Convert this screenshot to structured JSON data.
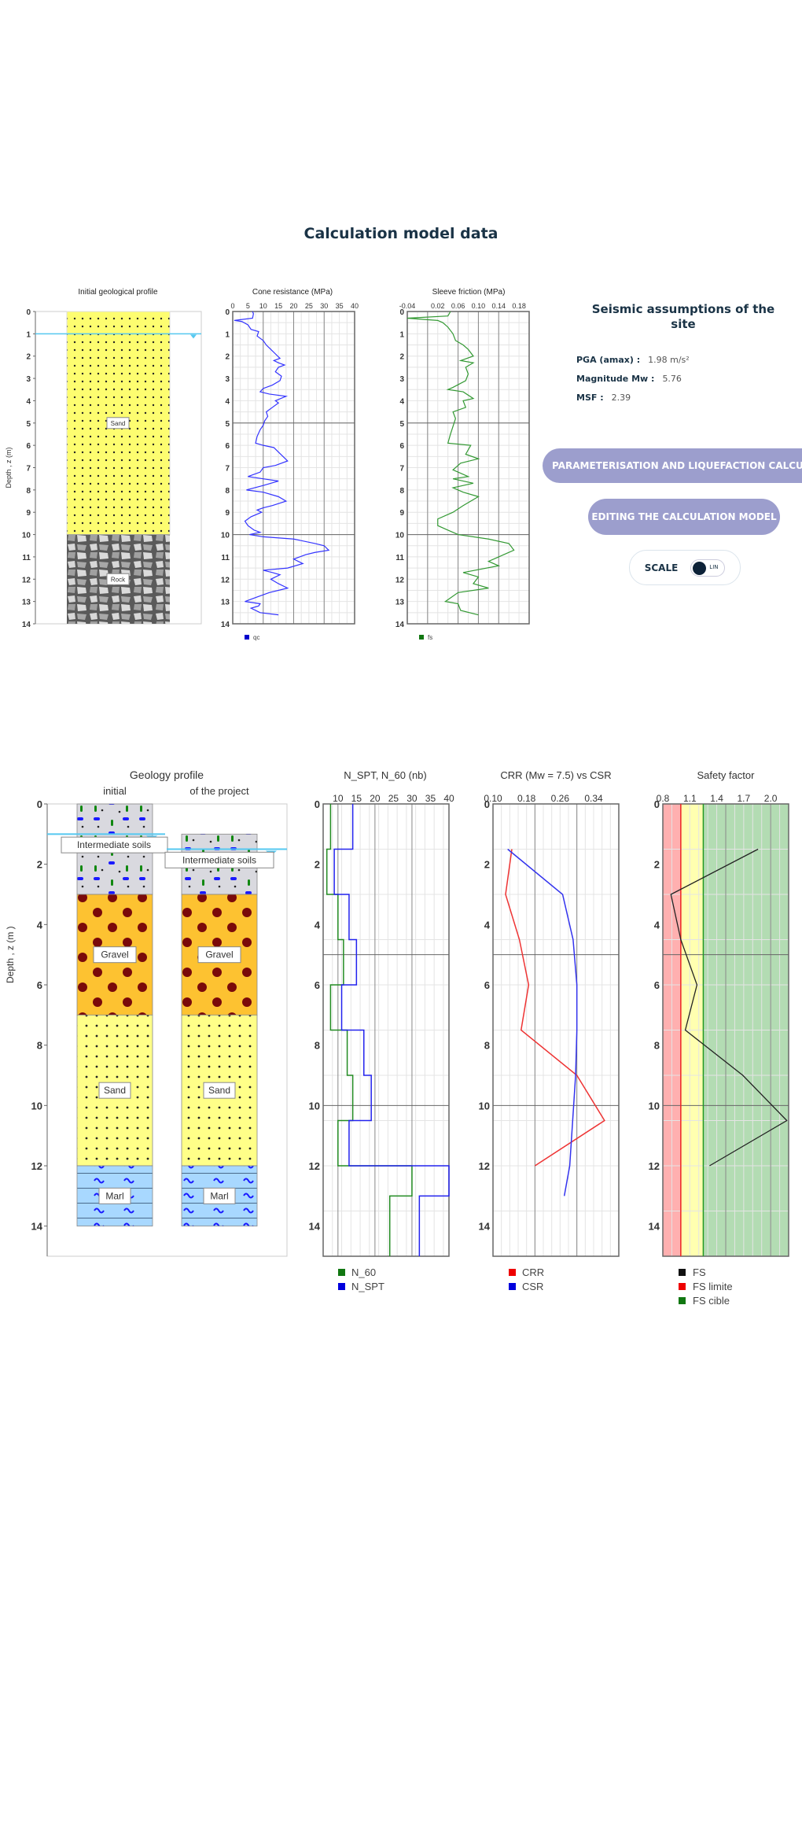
{
  "page": {
    "title": "Calculation model data"
  },
  "seismic": {
    "title": "Seismic assumptions of the site",
    "pga_label": "PGA (amax) :",
    "pga_value": "1.98 m/s²",
    "mw_label": "Magnitude Mw :",
    "mw_value": "5.76",
    "msf_label": "MSF :",
    "msf_value": "2.39"
  },
  "buttons": {
    "param": "PARAMETERISATION AND LIQUEFACTION CALCULATION",
    "edit": "EDITING THE CALCULATION MODEL",
    "scale_label": "SCALE",
    "scale_state": "LIN"
  },
  "colors": {
    "accent": "#9c9ecd",
    "navy": "#1a3346",
    "water": "#55c8f0"
  },
  "chart_data": [
    {
      "id": "initial_geology",
      "type": "table",
      "title": "Initial geological profile",
      "ylabel": "Depth , z (m)",
      "ylim": [
        0,
        14
      ],
      "water_table_depth": 1,
      "layers": [
        {
          "name": "Sand",
          "top": 0,
          "bottom": 10,
          "color": "#fdfd70"
        },
        {
          "name": "Rock",
          "top": 10,
          "bottom": 14,
          "color": "#8a8a8a"
        }
      ]
    },
    {
      "id": "cone_resistance",
      "type": "line",
      "title": "Cone resistance (MPa)",
      "xlim": [
        0,
        40
      ],
      "ylim": [
        0,
        14
      ],
      "xticks": [
        0,
        5,
        10,
        15,
        20,
        25,
        30,
        35,
        40
      ],
      "yticks": [
        0,
        1,
        2,
        3,
        4,
        5,
        6,
        7,
        8,
        9,
        10,
        11,
        12,
        13,
        14
      ],
      "legend": [
        "qc"
      ],
      "color": "#3333ff",
      "points": [
        [
          6.5,
          0
        ],
        [
          6.8,
          0.1
        ],
        [
          6.5,
          0.3
        ],
        [
          0.5,
          0.4
        ],
        [
          3,
          0.45
        ],
        [
          5,
          0.6
        ],
        [
          6,
          0.8
        ],
        [
          8.5,
          0.9
        ],
        [
          8,
          1.1
        ],
        [
          10,
          1.3
        ],
        [
          11,
          1.5
        ],
        [
          12.5,
          1.7
        ],
        [
          14,
          1.9
        ],
        [
          15.5,
          2.1
        ],
        [
          13.5,
          2.2
        ],
        [
          15,
          2.3
        ],
        [
          17,
          2.4
        ],
        [
          15,
          2.5
        ],
        [
          14,
          2.7
        ],
        [
          16,
          2.9
        ],
        [
          15.5,
          3.1
        ],
        [
          13,
          3.3
        ],
        [
          10,
          3.45
        ],
        [
          9,
          3.6
        ],
        [
          12,
          3.7
        ],
        [
          17.5,
          3.8
        ],
        [
          14,
          4.0
        ],
        [
          15,
          4.1
        ],
        [
          13,
          4.3
        ],
        [
          11,
          4.5
        ],
        [
          11.5,
          4.7
        ],
        [
          10.5,
          4.9
        ],
        [
          10,
          5.1
        ],
        [
          9,
          5.3
        ],
        [
          8,
          5.6
        ],
        [
          7.5,
          5.9
        ],
        [
          10,
          6.0
        ],
        [
          13.5,
          6.1
        ],
        [
          15,
          6.3
        ],
        [
          16.5,
          6.5
        ],
        [
          18,
          6.7
        ],
        [
          14,
          6.9
        ],
        [
          10,
          7.0
        ],
        [
          9,
          7.2
        ],
        [
          5,
          7.4
        ],
        [
          10,
          7.5
        ],
        [
          15,
          7.6
        ],
        [
          10,
          7.8
        ],
        [
          4.5,
          8.0
        ],
        [
          10,
          8.1
        ],
        [
          15,
          8.3
        ],
        [
          17.5,
          8.5
        ],
        [
          13,
          8.7
        ],
        [
          10,
          8.8
        ],
        [
          8,
          8.9
        ],
        [
          9.5,
          9.0
        ],
        [
          6,
          9.2
        ],
        [
          4,
          9.4
        ],
        [
          5,
          9.6
        ],
        [
          7,
          9.8
        ],
        [
          9,
          9.9
        ],
        [
          5.5,
          10.0
        ],
        [
          10,
          10.1
        ],
        [
          20,
          10.2
        ],
        [
          27,
          10.4
        ],
        [
          30,
          10.5
        ],
        [
          31.5,
          10.7
        ],
        [
          27,
          10.8
        ],
        [
          24,
          10.9
        ],
        [
          20,
          11.1
        ],
        [
          23,
          11.3
        ],
        [
          18,
          11.5
        ],
        [
          10,
          11.6
        ],
        [
          13,
          11.7
        ],
        [
          15.5,
          11.8
        ],
        [
          12.5,
          12.0
        ],
        [
          15,
          12.2
        ],
        [
          18,
          12.4
        ],
        [
          12,
          12.6
        ],
        [
          8,
          12.8
        ],
        [
          4,
          13.0
        ],
        [
          9,
          13.1
        ],
        [
          8.5,
          13.2
        ],
        [
          6,
          13.3
        ],
        [
          9,
          13.5
        ],
        [
          15,
          13.6
        ]
      ]
    },
    {
      "id": "sleeve_friction",
      "type": "line",
      "title": "Sleeve friction (MPa)",
      "xlim": [
        -0.04,
        0.2
      ],
      "ylim": [
        0,
        14
      ],
      "xticks": [
        -0.04,
        0.02,
        0.06,
        0.1,
        0.14,
        0.18
      ],
      "legend": [
        "fs"
      ],
      "color": "#339933",
      "points": [
        [
          0.045,
          0
        ],
        [
          0.04,
          0.2
        ],
        [
          -0.04,
          0.3
        ],
        [
          0.02,
          0.4
        ],
        [
          0.03,
          0.5
        ],
        [
          0.04,
          0.7
        ],
        [
          0.05,
          1.0
        ],
        [
          0.055,
          1.3
        ],
        [
          0.07,
          1.5
        ],
        [
          0.08,
          1.7
        ],
        [
          0.09,
          2.0
        ],
        [
          0.065,
          2.2
        ],
        [
          0.09,
          2.3
        ],
        [
          0.075,
          2.5
        ],
        [
          0.08,
          2.8
        ],
        [
          0.075,
          3.1
        ],
        [
          0.05,
          3.4
        ],
        [
          0.04,
          3.5
        ],
        [
          0.07,
          3.6
        ],
        [
          0.09,
          3.9
        ],
        [
          0.07,
          4.0
        ],
        [
          0.075,
          4.3
        ],
        [
          0.05,
          4.5
        ],
        [
          0.055,
          4.8
        ],
        [
          0.045,
          5.5
        ],
        [
          0.04,
          5.9
        ],
        [
          0.085,
          6.0
        ],
        [
          0.075,
          6.4
        ],
        [
          0.1,
          6.6
        ],
        [
          0.065,
          6.8
        ],
        [
          0.05,
          7.1
        ],
        [
          0.08,
          7.4
        ],
        [
          0.05,
          7.5
        ],
        [
          0.09,
          7.7
        ],
        [
          0.05,
          7.9
        ],
        [
          0.07,
          8.1
        ],
        [
          0.1,
          8.3
        ],
        [
          0.07,
          8.7
        ],
        [
          0.05,
          9.0
        ],
        [
          0.02,
          9.3
        ],
        [
          0.02,
          9.6
        ],
        [
          0.04,
          9.8
        ],
        [
          0.06,
          10.0
        ],
        [
          0.12,
          10.2
        ],
        [
          0.16,
          10.4
        ],
        [
          0.17,
          10.7
        ],
        [
          0.15,
          10.9
        ],
        [
          0.12,
          11.2
        ],
        [
          0.14,
          11.4
        ],
        [
          0.07,
          11.7
        ],
        [
          0.1,
          11.9
        ],
        [
          0.09,
          12.2
        ],
        [
          0.12,
          12.4
        ],
        [
          0.06,
          12.6
        ],
        [
          0.035,
          13.0
        ],
        [
          0.06,
          13.1
        ],
        [
          0.065,
          13.4
        ],
        [
          0.1,
          13.6
        ]
      ]
    },
    {
      "id": "geology_profile",
      "type": "table",
      "title": "Geology profile",
      "columns": [
        "initial",
        "of the project"
      ],
      "ylabel": "Depth , z (m )",
      "ylim": [
        0,
        15
      ],
      "yticks": [
        0,
        2,
        4,
        6,
        8,
        10,
        12,
        14
      ],
      "water_table_depth": {
        "initial": 1.0,
        "project": 1.5
      },
      "layers_initial": [
        {
          "name": "Intermediate soils",
          "top": 0,
          "bottom": 3
        },
        {
          "name": "Gravel",
          "top": 3,
          "bottom": 7
        },
        {
          "name": "Sand",
          "top": 7,
          "bottom": 12
        },
        {
          "name": "Marl",
          "top": 12,
          "bottom": 14
        }
      ],
      "layers_project": [
        {
          "name": "Intermediate soils",
          "top": 1,
          "bottom": 3
        },
        {
          "name": "Gravel",
          "top": 3,
          "bottom": 7
        },
        {
          "name": "Sand",
          "top": 7,
          "bottom": 12
        },
        {
          "name": "Marl",
          "top": 12,
          "bottom": 14
        }
      ]
    },
    {
      "id": "nspt",
      "type": "line",
      "title": "N_SPT, N_60 (nb)",
      "xlim": [
        6,
        40
      ],
      "ylim": [
        0,
        15
      ],
      "xticks": [
        10,
        15,
        20,
        25,
        30,
        35,
        40
      ],
      "yticks": [
        0,
        2,
        4,
        6,
        8,
        10,
        12,
        14
      ],
      "series": [
        {
          "name": "N_60",
          "color": "#228b22",
          "steps": [
            [
              0,
              1.5,
              8
            ],
            [
              1.5,
              3,
              7
            ],
            [
              3,
              4.5,
              10
            ],
            [
              4.5,
              6,
              11.5
            ],
            [
              6,
              7.5,
              8
            ],
            [
              7.5,
              9,
              12.5
            ],
            [
              9,
              10.5,
              14
            ],
            [
              10.5,
              12,
              10
            ],
            [
              12,
              13,
              30
            ],
            [
              13,
              15,
              24
            ]
          ]
        },
        {
          "name": "N_SPT",
          "color": "#2222ee",
          "steps": [
            [
              0,
              1.5,
              14
            ],
            [
              1.5,
              3,
              9
            ],
            [
              3,
              4.5,
              13
            ],
            [
              4.5,
              6,
              15
            ],
            [
              6,
              7.5,
              11
            ],
            [
              7.5,
              9,
              17
            ],
            [
              9,
              10.5,
              19
            ],
            [
              10.5,
              12,
              13
            ],
            [
              12,
              13,
              40
            ],
            [
              13,
              15,
              32
            ]
          ]
        }
      ]
    },
    {
      "id": "crr_csr",
      "type": "line",
      "title": "CRR (Mw = 7.5) vs CSR",
      "xlim": [
        0.1,
        0.4
      ],
      "ylim": [
        0,
        15
      ],
      "xticks": [
        0.1,
        0.18,
        0.26,
        0.34
      ],
      "yticks": [
        0,
        2,
        4,
        6,
        8,
        10,
        12,
        14
      ],
      "series": [
        {
          "name": "CRR",
          "color": "#ee3333",
          "points": [
            [
              0.145,
              1.5
            ],
            [
              0.13,
              3
            ],
            [
              0.163,
              4.5
            ],
            [
              0.185,
              6
            ],
            [
              0.167,
              7.5
            ],
            [
              0.3,
              9
            ],
            [
              0.366,
              10.5
            ],
            [
              0.2,
              12
            ]
          ]
        },
        {
          "name": "CSR",
          "color": "#3333ee",
          "points": [
            [
              0.135,
              1.5
            ],
            [
              0.266,
              3
            ],
            [
              0.291,
              4.5
            ],
            [
              0.3,
              6
            ],
            [
              0.3,
              7.5
            ],
            [
              0.297,
              9
            ],
            [
              0.29,
              10.5
            ],
            [
              0.283,
              12
            ],
            [
              0.27,
              13
            ]
          ]
        }
      ]
    },
    {
      "id": "safety_factor",
      "type": "line",
      "title": "Safety factor",
      "xlim": [
        0.8,
        2.2
      ],
      "ylim": [
        0,
        15
      ],
      "xticks": [
        0.8,
        1.1,
        1.4,
        1.7,
        2.0
      ],
      "yticks": [
        0,
        2,
        4,
        6,
        8,
        10,
        12,
        14
      ],
      "fs_limite": 1.0,
      "fs_cible": 1.25,
      "series": [
        {
          "name": "FS",
          "color": "#222222",
          "points": [
            [
              1.86,
              1.5
            ],
            [
              0.89,
              3
            ],
            [
              1.0,
              4.5
            ],
            [
              1.18,
              6
            ],
            [
              1.05,
              7.5
            ],
            [
              1.69,
              9
            ],
            [
              2.18,
              10.5
            ],
            [
              1.32,
              12
            ]
          ]
        }
      ],
      "legend": [
        "FS",
        "FS limite",
        "FS cible"
      ]
    }
  ]
}
